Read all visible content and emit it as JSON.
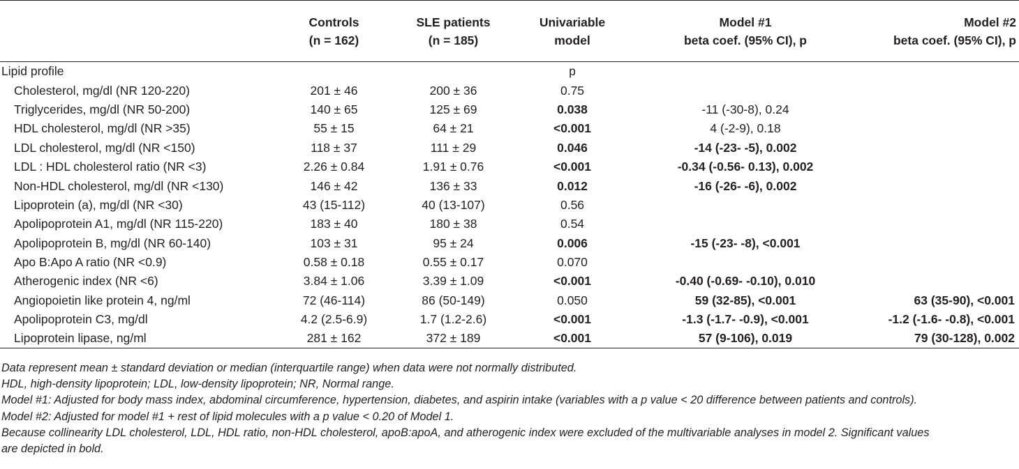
{
  "header": {
    "col_controls": [
      "Controls",
      "(n = 162)"
    ],
    "col_sle": [
      "SLE patients",
      "(n = 185)"
    ],
    "col_univariable": [
      "Univariable",
      "model"
    ],
    "col_model1": [
      "Model #1",
      "beta coef. (95% CI), p"
    ],
    "col_model2": [
      "Model #2",
      "beta coef. (95% CI), p"
    ]
  },
  "section": {
    "label": "Lipid profile",
    "p_label": "p"
  },
  "rows": [
    {
      "label": "Cholesterol, mg/dl (NR 120-220)",
      "controls": "201 ± 46",
      "sle": "200 ± 36",
      "p": "0.75",
      "p_bold": false,
      "m1": "",
      "m1_bold": false,
      "m2": "",
      "m2_bold": false
    },
    {
      "label": "Triglycerides, mg/dl (NR 50-200)",
      "controls": "140 ± 65",
      "sle": "125 ± 69",
      "p": "0.038",
      "p_bold": true,
      "m1": "-11 (-30-8), 0.24",
      "m1_bold": false,
      "m2": "",
      "m2_bold": false
    },
    {
      "label": "HDL cholesterol, mg/dl (NR >35)",
      "controls": "55 ± 15",
      "sle": "64 ± 21",
      "p": "<0.001",
      "p_bold": true,
      "m1": "4 (-2-9), 0.18",
      "m1_bold": false,
      "m2": "",
      "m2_bold": false
    },
    {
      "label": "LDL cholesterol, mg/dl (NR <150)",
      "controls": "118 ± 37",
      "sle": "111 ± 29",
      "p": "0.046",
      "p_bold": true,
      "m1": "-14 (-23- -5), 0.002",
      "m1_bold": true,
      "m2": "",
      "m2_bold": false
    },
    {
      "label": "LDL : HDL cholesterol ratio (NR <3)",
      "controls": "2.26 ± 0.84",
      "sle": "1.91 ± 0.76",
      "p": "<0.001",
      "p_bold": true,
      "m1": "-0.34 (-0.56- 0.13), 0.002",
      "m1_bold": true,
      "m2": "",
      "m2_bold": false
    },
    {
      "label": "Non-HDL cholesterol, mg/dl (NR <130)",
      "controls": "146 ± 42",
      "sle": "136 ± 33",
      "p": "0.012",
      "p_bold": true,
      "m1": "-16 (-26- -6), 0.002",
      "m1_bold": true,
      "m2": "",
      "m2_bold": false
    },
    {
      "label": "Lipoprotein (a), mg/dl (NR <30)",
      "controls": "43 (15-112)",
      "sle": "40 (13-107)",
      "p": "0.56",
      "p_bold": false,
      "m1": "",
      "m1_bold": false,
      "m2": "",
      "m2_bold": false
    },
    {
      "label": "Apolipoprotein A1, mg/dl (NR 115-220)",
      "controls": "183 ± 40",
      "sle": "180 ± 38",
      "p": "0.54",
      "p_bold": false,
      "m1": "",
      "m1_bold": false,
      "m2": "",
      "m2_bold": false
    },
    {
      "label": "Apolipoprotein B, mg/dl (NR 60-140)",
      "controls": "103 ± 31",
      "sle": "95 ± 24",
      "p": "0.006",
      "p_bold": true,
      "m1": "-15 (-23- -8), <0.001",
      "m1_bold": true,
      "m2": "",
      "m2_bold": false
    },
    {
      "label": "Apo B:Apo A ratio (NR <0.9)",
      "controls": "0.58 ± 0.18",
      "sle": "0.55 ± 0.17",
      "p": "0.070",
      "p_bold": false,
      "m1": "",
      "m1_bold": false,
      "m2": "",
      "m2_bold": false
    },
    {
      "label": "Atherogenic index (NR <6)",
      "controls": "3.84 ± 1.06",
      "sle": "3.39 ± 1.09",
      "p": "<0.001",
      "p_bold": true,
      "m1": "-0.40 (-0.69- -0.10), 0.010",
      "m1_bold": true,
      "m2": "",
      "m2_bold": false
    },
    {
      "label": "Angiopoietin like protein 4, ng/ml",
      "controls": "72 (46-114)",
      "sle": "86 (50-149)",
      "p": "0.050",
      "p_bold": false,
      "m1": "59 (32-85), <0.001",
      "m1_bold": true,
      "m2": "63 (35-90), <0.001",
      "m2_bold": true
    },
    {
      "label": "Apolipoprotein C3, mg/dl",
      "controls": "4.2 (2.5-6.9)",
      "sle": "1.7 (1.2-2.6)",
      "p": "<0.001",
      "p_bold": true,
      "m1": "-1.3 (-1.7- -0.9), <0.001",
      "m1_bold": true,
      "m2": "-1.2 (-1.6- -0.8), <0.001",
      "m2_bold": true
    },
    {
      "label": "Lipoprotein lipase, ng/ml",
      "controls": "281 ± 162",
      "sle": "372 ± 189",
      "p": "<0.001",
      "p_bold": true,
      "m1": "57 (9-106), 0.019",
      "m1_bold": true,
      "m2": "79 (30-128), 0.002",
      "m2_bold": true
    }
  ],
  "notes": [
    "Data represent mean ± standard deviation or median (interquartile range) when data were not normally distributed.",
    "HDL, high-density lipoprotein; LDL, low-density lipoprotein; NR, Normal range.",
    "Model #1: Adjusted for body mass index, abdominal circumference, hypertension, diabetes, and aspirin intake (variables with a p value < 20 difference between patients and controls).",
    "Model #2: Adjusted for model #1 + rest of lipid molecules with a p value < 0.20 of Model 1.",
    "Because collinearity LDL cholesterol, LDL, HDL ratio, non-HDL cholesterol, apoB:apoA, and atherogenic index were excluded of the multivariable analyses in model 2. Significant values",
    "are depicted in bold."
  ]
}
